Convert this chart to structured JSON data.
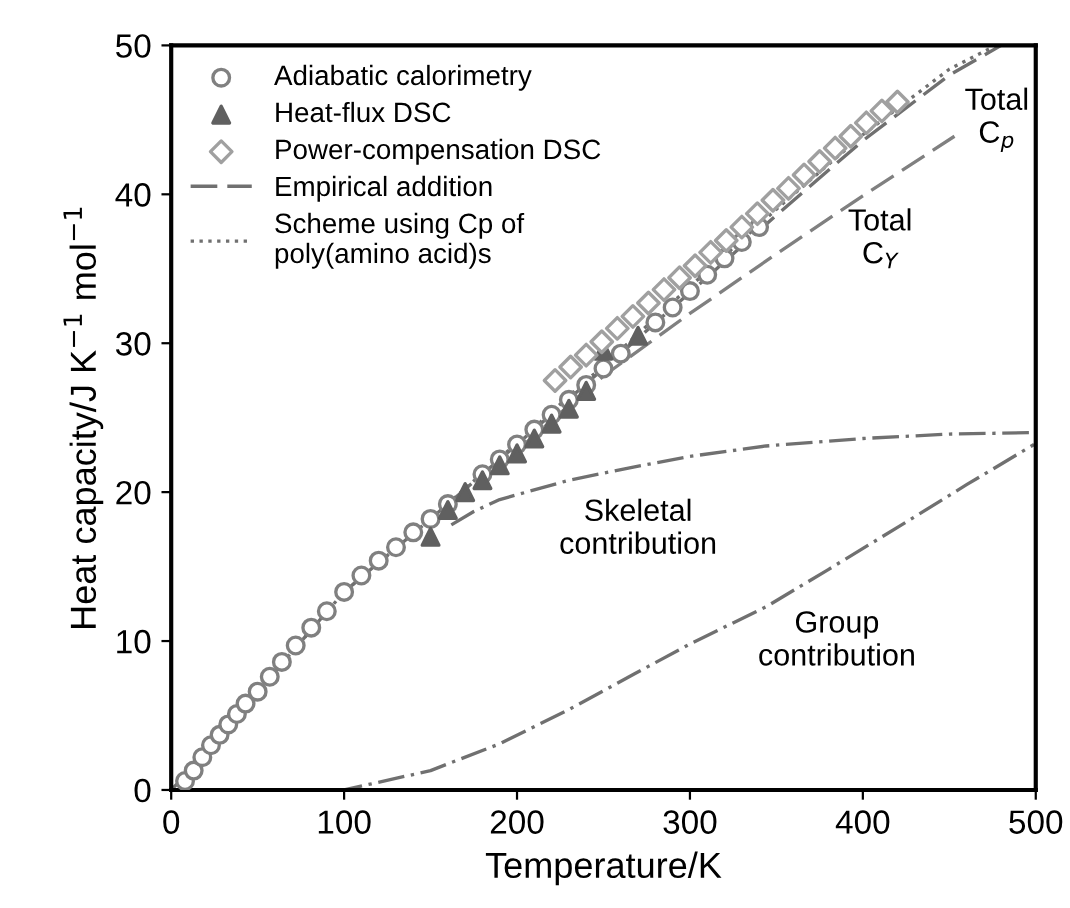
{
  "chart_data": {
    "type": "scatter",
    "xlabel": "Temperature/K",
    "ylabel": "Heat capacity/J K$^{−1}$ mol$^{−1}$",
    "xlim": [
      0,
      500
    ],
    "ylim": [
      0,
      50
    ],
    "xticks": [
      0,
      100,
      200,
      300,
      400,
      500
    ],
    "yticks": [
      0,
      10,
      20,
      30,
      40,
      50
    ],
    "grid": false,
    "legend": "top left",
    "series": [
      {
        "name": "Adiabatic calorimetry",
        "marker": "circle",
        "color": "#808080",
        "x": [
          8,
          13,
          18,
          23,
          28,
          33,
          38,
          43,
          50,
          57,
          64,
          72,
          81,
          90,
          100,
          110,
          120,
          130,
          140,
          150,
          160,
          170,
          180,
          190,
          200,
          210,
          220,
          230,
          240,
          250,
          260,
          270,
          280,
          290,
          300,
          310,
          320,
          330,
          340
        ],
        "values": [
          0.6,
          1.3,
          2.2,
          3.0,
          3.7,
          4.4,
          5.1,
          5.8,
          6.6,
          7.6,
          8.6,
          9.7,
          10.9,
          12.0,
          13.3,
          14.4,
          15.4,
          16.3,
          17.3,
          18.2,
          19.2,
          null,
          21.2,
          22.2,
          23.2,
          24.2,
          25.2,
          26.2,
          27.2,
          28.3,
          29.3,
          null,
          31.4,
          32.4,
          33.5,
          34.6,
          35.7,
          36.8,
          37.8
        ]
      },
      {
        "name": "Heat-flux DSC",
        "marker": "triangle",
        "color": "#606060",
        "x": [
          150,
          160,
          170,
          180,
          190,
          200,
          210,
          220,
          230,
          240,
          250,
          262,
          270
        ],
        "values": [
          17.0,
          18.8,
          20.0,
          20.8,
          21.8,
          22.6,
          23.6,
          24.6,
          25.6,
          26.8,
          29.5,
          null,
          30.5
        ]
      },
      {
        "name": "Power-compensation DSC",
        "marker": "diamond",
        "color": "#a0a0a0",
        "x": [
          222,
          231,
          240,
          249,
          258,
          267,
          276,
          285,
          294,
          303,
          312,
          321,
          330,
          339,
          348,
          357,
          366,
          375,
          384,
          393,
          402,
          411,
          420
        ],
        "values": [
          27.5,
          28.4,
          29.2,
          30.1,
          31.0,
          31.8,
          32.7,
          33.6,
          34.4,
          35.2,
          36.1,
          36.9,
          37.8,
          38.7,
          39.6,
          40.4,
          41.3,
          42.2,
          43.1,
          43.9,
          44.8,
          45.6,
          46.2
        ]
      },
      {
        "name": "Empirical addition",
        "type": "line",
        "line_style": "dashed",
        "color": "#707070",
        "x": [
          0,
          20,
          50,
          100,
          150,
          200,
          250,
          300,
          350,
          400,
          450,
          480
        ],
        "values": [
          0,
          2.4,
          6.6,
          13.3,
          18.2,
          23.2,
          28.3,
          33.4,
          38.6,
          43.6,
          48.0,
          50.0
        ]
      },
      {
        "name": "Scheme using Cp of\npoly(amino acid)s",
        "type": "line",
        "line_style": "dotted",
        "color": "#707070",
        "x": [
          0,
          20,
          50,
          100,
          150,
          200,
          250,
          300,
          350,
          400,
          450,
          477
        ],
        "values": [
          0,
          2.4,
          6.6,
          13.3,
          18.2,
          23.3,
          28.5,
          33.8,
          39.0,
          44.0,
          48.4,
          50.0
        ]
      },
      {
        "type": "line",
        "line_style": "dashed",
        "color": "#808080",
        "x": [
          200,
          250,
          300,
          350,
          400,
          453
        ],
        "values": [
          22.8,
          27.8,
          32.0,
          36.0,
          39.9,
          43.9
        ]
      },
      {
        "type": "line",
        "line_style": "dashdot",
        "color": "#707070",
        "x": [
          162,
          175,
          190,
          230,
          268,
          300,
          344,
          400,
          450,
          499
        ],
        "values": [
          17.8,
          18.7,
          19.5,
          20.8,
          21.7,
          22.4,
          23.1,
          23.6,
          23.9,
          24.0
        ]
      },
      {
        "type": "line",
        "line_style": "dashdot",
        "color": "#707070",
        "x": [
          20,
          100,
          150,
          190,
          230,
          268,
          300,
          344,
          380,
          421,
          460,
          499
        ],
        "values": [
          0,
          0,
          1.3,
          3.1,
          5.4,
          7.8,
          9.8,
          12.3,
          14.8,
          17.7,
          20.5,
          23.2
        ]
      }
    ],
    "annotations": [
      "Total\nC$_{p}$",
      "Total\nC$_{Y}$",
      "Skeletal\ncontribution",
      "Group\ncontribution"
    ]
  }
}
